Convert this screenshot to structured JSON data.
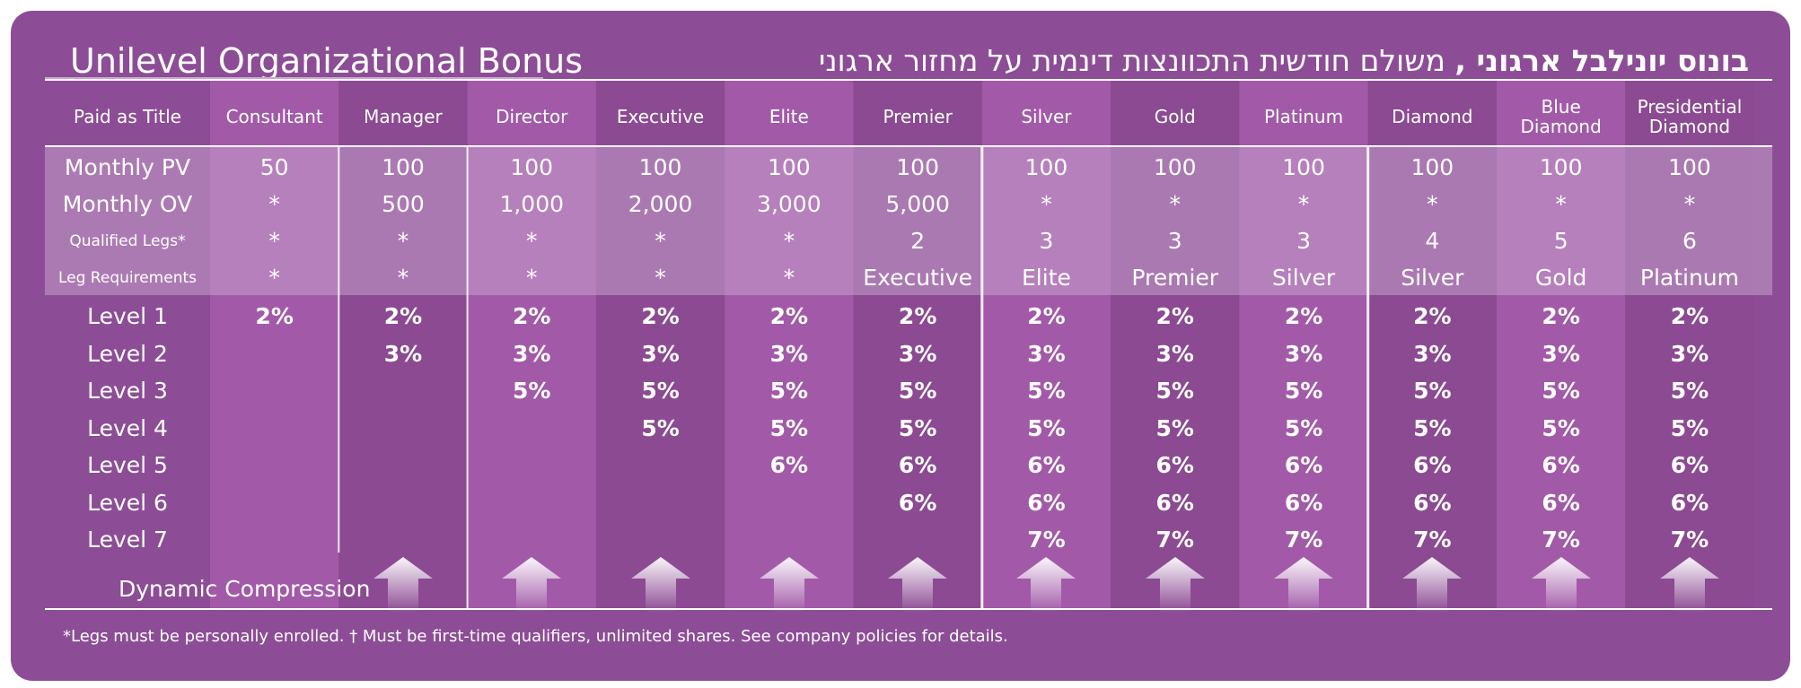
{
  "title_en": "Unilevel Organizational Bonus",
  "title_he_bold": "בונוס יונילבל ארגוני ,",
  "title_he_rest": " משולם חודשית התכוונצות דינמית על מחזור ארגוני",
  "footnote": "*Legs must be personally enrolled. † Must be first-time qualifiers, unlimited shares. See company policies for details.",
  "colors": {
    "background": "#8c4d96",
    "column_light": "#a25aa8",
    "column_dark": "#8b4a92",
    "qualification_overlay": "#c7a0cc"
  },
  "icons": [
    "compression-arrow-icon"
  ],
  "chart_data": {
    "type": "table",
    "header_label": "Paid as Title",
    "titles": [
      "Consultant",
      "Manager",
      "Director",
      "Executive",
      "Elite",
      "Premier",
      "Silver",
      "Gold",
      "Platinum",
      "Diamond",
      "Blue\nDiamond",
      "Presidential\nDiamond"
    ],
    "qualifications": [
      {
        "label": "Monthly PV",
        "values": [
          "50",
          "100",
          "100",
          "100",
          "100",
          "100",
          "100",
          "100",
          "100",
          "100",
          "100",
          "100"
        ]
      },
      {
        "label": "Monthly OV",
        "values": [
          "*",
          "500",
          "1,000",
          "2,000",
          "3,000",
          "5,000",
          "*",
          "*",
          "*",
          "*",
          "*",
          "*"
        ]
      },
      {
        "label": "Qualified Legs*",
        "values": [
          "*",
          "*",
          "*",
          "*",
          "*",
          "2",
          "3",
          "3",
          "3",
          "4",
          "5",
          "6"
        ]
      },
      {
        "label": "Leg Requirements",
        "values": [
          "*",
          "*",
          "*",
          "*",
          "*",
          "Executive",
          "Elite",
          "Premier",
          "Silver",
          "Silver",
          "Gold",
          "Platinum"
        ]
      }
    ],
    "levels": [
      {
        "label": "Level 1",
        "values": [
          "2%",
          "2%",
          "2%",
          "2%",
          "2%",
          "2%",
          "2%",
          "2%",
          "2%",
          "2%",
          "2%",
          "2%"
        ]
      },
      {
        "label": "Level 2",
        "values": [
          "",
          "3%",
          "3%",
          "3%",
          "3%",
          "3%",
          "3%",
          "3%",
          "3%",
          "3%",
          "3%",
          "3%"
        ]
      },
      {
        "label": "Level 3",
        "values": [
          "",
          "",
          "5%",
          "5%",
          "5%",
          "5%",
          "5%",
          "5%",
          "5%",
          "5%",
          "5%",
          "5%"
        ]
      },
      {
        "label": "Level 4",
        "values": [
          "",
          "",
          "",
          "5%",
          "5%",
          "5%",
          "5%",
          "5%",
          "5%",
          "5%",
          "5%",
          "5%"
        ]
      },
      {
        "label": "Level 5",
        "values": [
          "",
          "",
          "",
          "",
          "6%",
          "6%",
          "6%",
          "6%",
          "6%",
          "6%",
          "6%",
          "6%"
        ]
      },
      {
        "label": "Level 6",
        "values": [
          "",
          "",
          "",
          "",
          "",
          "6%",
          "6%",
          "6%",
          "6%",
          "6%",
          "6%",
          "6%"
        ]
      },
      {
        "label": "Level 7",
        "values": [
          "",
          "",
          "",
          "",
          "",
          "",
          "7%",
          "7%",
          "7%",
          "7%",
          "7%",
          "7%"
        ]
      }
    ],
    "dynamic_compression": {
      "label": "Dynamic Compression",
      "columns": [
        false,
        true,
        true,
        true,
        true,
        true,
        true,
        true,
        true,
        true,
        true,
        true
      ]
    }
  }
}
